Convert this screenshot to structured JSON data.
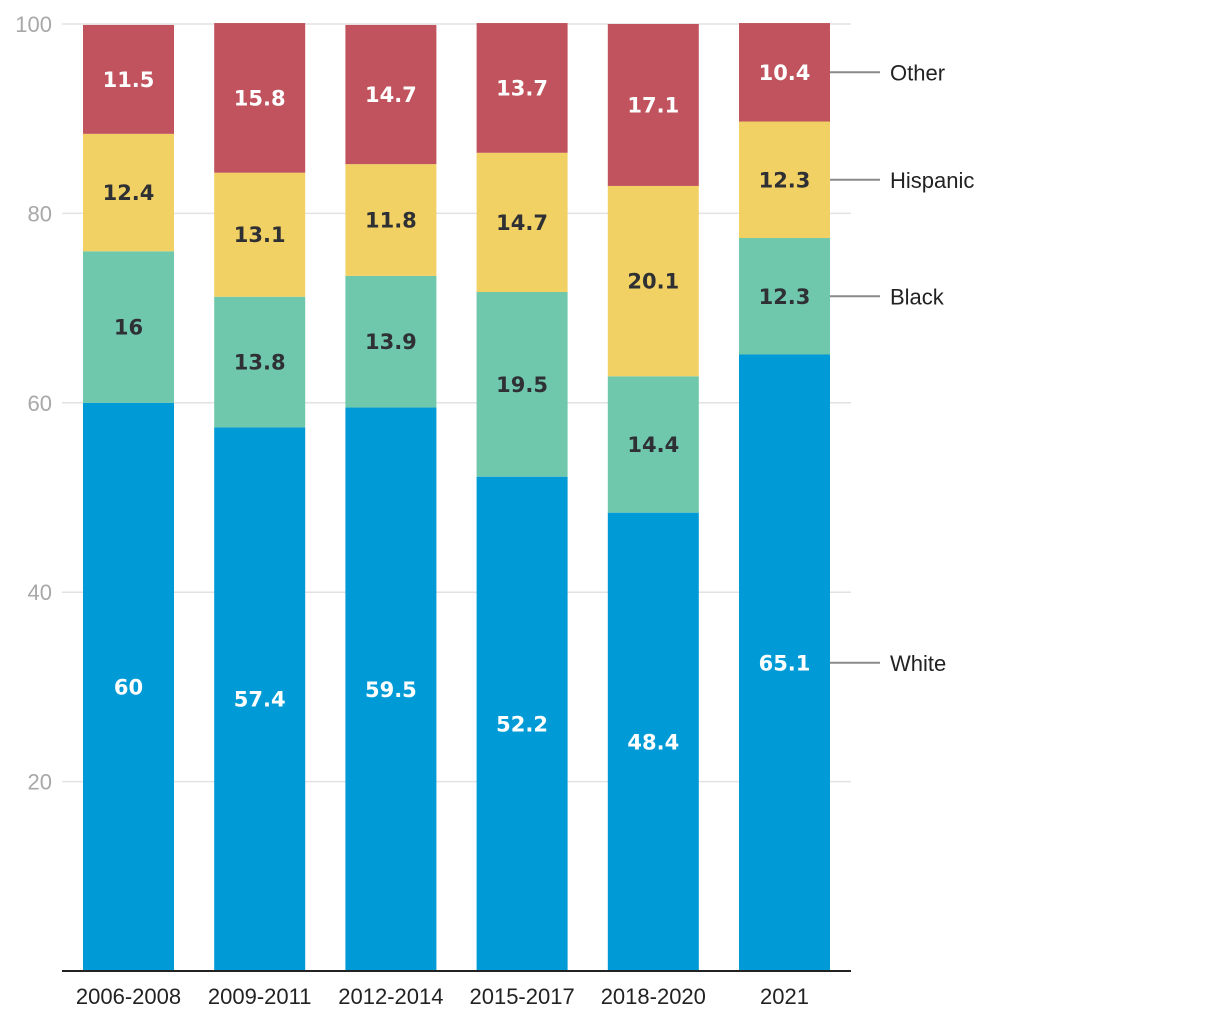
{
  "chart_data": {
    "type": "bar",
    "stacked": true,
    "categories": [
      "2006-2008",
      "2009-2011",
      "2012-2014",
      "2015-2017",
      "2018-2020",
      "2021"
    ],
    "series": [
      {
        "name": "White",
        "color": "#009bd6",
        "label_color": "#ffffff",
        "values": [
          60,
          57.4,
          59.5,
          52.2,
          48.4,
          65.1
        ],
        "labels": [
          "60",
          "57.4",
          "59.5",
          "52.2",
          "48.4",
          "65.1"
        ]
      },
      {
        "name": "Black",
        "color": "#6fc8ab",
        "label_color": "#2f3034",
        "values": [
          16,
          13.8,
          13.9,
          19.5,
          14.4,
          12.3
        ],
        "labels": [
          "16",
          "13.8",
          "13.9",
          "19.5",
          "14.4",
          "12.3"
        ]
      },
      {
        "name": "Hispanic",
        "color": "#f2d164",
        "label_color": "#2f3034",
        "values": [
          12.4,
          13.1,
          11.8,
          14.7,
          20.1,
          12.3
        ],
        "labels": [
          "12.4",
          "13.1",
          "11.8",
          "14.7",
          "20.1",
          "12.3"
        ]
      },
      {
        "name": "Other",
        "color": "#c0535d",
        "label_color": "#ffffff",
        "values": [
          11.5,
          15.8,
          14.7,
          13.7,
          17.1,
          10.4
        ],
        "labels": [
          "11.5",
          "15.8",
          "14.7",
          "13.7",
          "17.1",
          "10.4"
        ]
      }
    ],
    "yticks": [
      "20",
      "40",
      "60",
      "80",
      "100"
    ],
    "ytick_values": [
      20,
      40,
      60,
      80,
      100
    ],
    "ylim": [
      0,
      100
    ],
    "title": "",
    "xlabel": "",
    "ylabel": "",
    "grid": true,
    "legend_position": "right, inline labels aligned to last bar"
  }
}
